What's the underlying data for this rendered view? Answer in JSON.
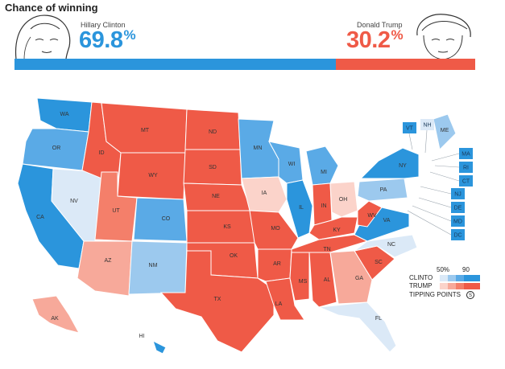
{
  "header": {
    "title": "Chance of winning"
  },
  "candidates": {
    "clinton": {
      "name": "Hillary Clinton",
      "pct": "69.8",
      "pct_symbol": "%",
      "value": 69.8,
      "color": "#2b95dc"
    },
    "trump": {
      "name": "Donald Trump",
      "pct": "30.2",
      "pct_symbol": "%",
      "value": 30.2,
      "color": "#ef5a47"
    }
  },
  "colors": {
    "dem_strong": "#2b95dc",
    "dem_likely": "#5aaae6",
    "dem_lean": "#9cc9ee",
    "dem_tilt": "#dbe9f7",
    "rep_strong": "#ef5a47",
    "rep_likely": "#f47f6a",
    "rep_lean": "#f7a99a",
    "rep_tilt": "#fbd3ca"
  },
  "states": {
    "WA": "WA",
    "OR": "OR",
    "CA": "CA",
    "NV": "NV",
    "ID": "ID",
    "MT": "MT",
    "WY": "WY",
    "UT": "UT",
    "AZ": "AZ",
    "CO": "CO",
    "NM": "NM",
    "ND": "ND",
    "SD": "SD",
    "NE": "NE",
    "KS": "KS",
    "OK": "OK",
    "TX": "TX",
    "MN": "MN",
    "IA": "IA",
    "MO": "MO",
    "AR": "AR",
    "LA": "LA",
    "WI": "WI",
    "IL": "IL",
    "MI": "MI",
    "IN": "IN",
    "OH": "OH",
    "KY": "KY",
    "TN": "TN",
    "MS": "MS",
    "AL": "AL",
    "GA": "GA",
    "FL": "FL",
    "SC": "SC",
    "NC": "NC",
    "VA": "VA",
    "WV": "WV",
    "PA": "PA",
    "NY": "NY",
    "ME": "ME",
    "AK": "AK",
    "HI": "HI"
  },
  "side_boxes": [
    "VT",
    "NH",
    "MA",
    "RI",
    "CT",
    "NJ",
    "DE",
    "MD",
    "DC"
  ],
  "legend": {
    "tick_low": "50%",
    "tick_high": "90",
    "clinton_label": "CLINTO",
    "trump_label": "TRUMP",
    "tipping_label": "TIPPING POINTS"
  }
}
